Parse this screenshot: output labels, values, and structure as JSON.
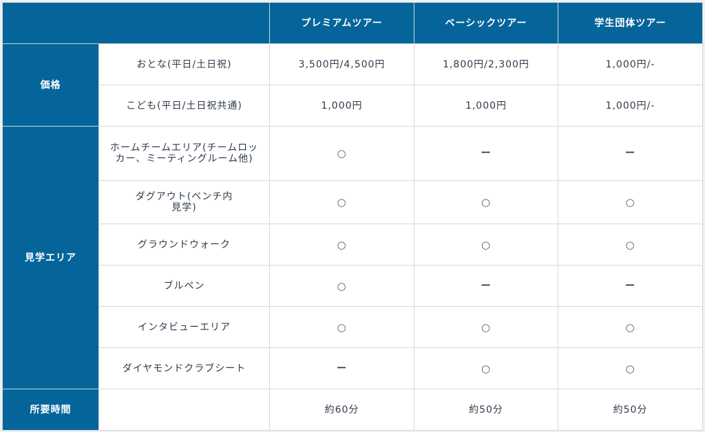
{
  "colors": {
    "accent": "#05659a"
  },
  "header": {
    "columns": [
      "プレミアムツアー",
      "ベーシックツアー",
      "学生団体ツアー"
    ]
  },
  "groups": [
    {
      "label": "価格",
      "rows": [
        {
          "label": "おとな(平日/土日祝)",
          "values": [
            "3,500円/4,500円",
            "1,800円/2,300円",
            "1,000円/-"
          ]
        },
        {
          "label": "こども(平日/土日祝共通)",
          "values": [
            "1,000円",
            "1,000円",
            "1,000円/-"
          ]
        }
      ]
    },
    {
      "label": "見学エリア",
      "rows": [
        {
          "label": "ホームチームエリア(チームロッカー、ミーティングルーム他)",
          "values": [
            "○",
            "ー",
            "ー"
          ]
        },
        {
          "label": "ダグアウト(ベンチ内見学)",
          "values": [
            "○",
            "○",
            "○"
          ]
        },
        {
          "label": "グラウンドウォーク",
          "values": [
            "○",
            "○",
            "○"
          ]
        },
        {
          "label": "ブルペン",
          "values": [
            "○",
            "ー",
            "ー"
          ]
        },
        {
          "label": "インタビューエリア",
          "values": [
            "○",
            "○",
            "○"
          ]
        },
        {
          "label": "ダイヤモンドクラブシート",
          "values": [
            "ー",
            "○",
            "○"
          ]
        }
      ]
    },
    {
      "label": "所要時間",
      "rows": [
        {
          "label": "",
          "values": [
            "約60分",
            "約50分",
            "約50分"
          ]
        }
      ]
    }
  ]
}
